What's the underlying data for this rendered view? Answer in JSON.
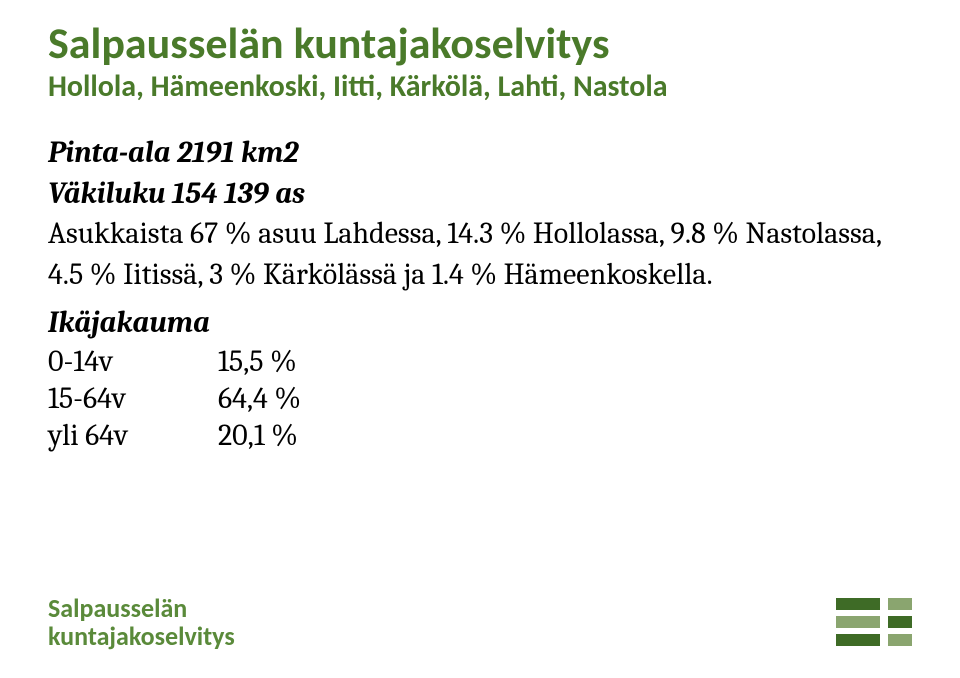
{
  "colors": {
    "heading": "#4a7a2a",
    "body": "#000000",
    "footer_text": "#5a8a3a",
    "bar_dark": "#3e6b26",
    "bar_light": "#8aa56f",
    "background": "#ffffff"
  },
  "title": "Salpausselän kuntajakoselvitys",
  "subtitle": "Hollola, Hämeenkoski, Iitti, Kärkölä, Lahti, Nastola",
  "stats": {
    "area_label": "Pinta-ala 2191 km2",
    "population_label": "Väkiluku 154 139 as",
    "distribution": "Asukkaista 67 % asuu Lahdessa, 14.3 % Hollolassa, 9.8 % Nastolassa, 4.5 % Iitissä, 3 % Kärkölässä ja 1.4 % Hämeenkoskella."
  },
  "age": {
    "label": "Ikäjakauma",
    "rows": [
      {
        "range": "0-14v",
        "pct": "15,5 %"
      },
      {
        "range": "15-64v",
        "pct": "64,4 %"
      },
      {
        "range": "yli 64v",
        "pct": "20,1 %"
      }
    ]
  },
  "footer": {
    "line1": "Salpausselän",
    "line2": "kuntajakoselvitys"
  }
}
